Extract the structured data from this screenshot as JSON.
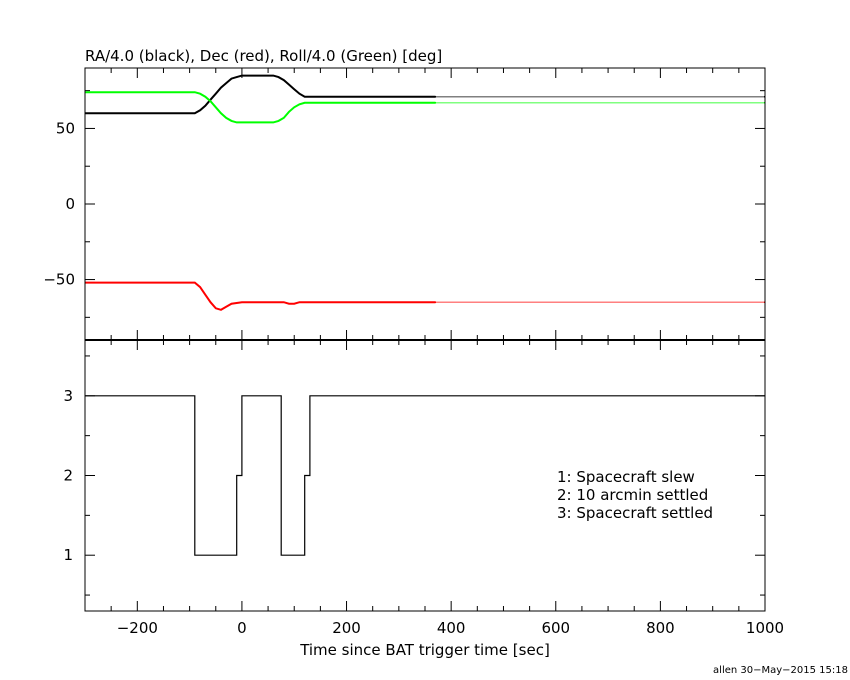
{
  "chart_data": [
    {
      "type": "line",
      "title": "RA/4.0 (black), Dec (red), Roll/4.0 (Green) [deg]",
      "xlim": [
        -300,
        1000
      ],
      "ylim": [
        -90,
        90
      ],
      "yticks": [
        -50,
        0,
        50
      ],
      "yticklabels": [
        "−50",
        "0",
        "50"
      ],
      "series": [
        {
          "color": "#000000",
          "solid_until": 370,
          "x": [
            -300,
            -90,
            -80,
            -70,
            -60,
            -50,
            -40,
            -30,
            -20,
            -10,
            0,
            60,
            70,
            80,
            90,
            100,
            110,
            120,
            370,
            1000
          ],
          "y": [
            60,
            60,
            62,
            65,
            69,
            73,
            77,
            80,
            83,
            84,
            85,
            85,
            84,
            82,
            79,
            76,
            73,
            71,
            71,
            71
          ]
        },
        {
          "color": "#ff0000",
          "solid_until": 370,
          "x": [
            -300,
            -90,
            -80,
            -70,
            -60,
            -50,
            -40,
            -30,
            -20,
            0,
            60,
            80,
            90,
            100,
            110,
            370,
            1000
          ],
          "y": [
            -52,
            -52,
            -55,
            -60,
            -65,
            -69,
            -70,
            -68,
            -66,
            -65,
            -65,
            -65,
            -66,
            -66,
            -65,
            -65,
            -65
          ]
        },
        {
          "color": "#00ff00",
          "solid_until": 370,
          "x": [
            -300,
            -90,
            -80,
            -70,
            -60,
            -50,
            -40,
            -30,
            -20,
            -10,
            0,
            60,
            70,
            80,
            90,
            100,
            110,
            120,
            370,
            1000
          ],
          "y": [
            74,
            74,
            73,
            71,
            68,
            64,
            60,
            57,
            55,
            54,
            54,
            54,
            55,
            57,
            61,
            64,
            66,
            67,
            67,
            67
          ]
        }
      ]
    },
    {
      "type": "line",
      "title": "",
      "xlabel": "Time since BAT trigger time [sec]",
      "xlim": [
        -300,
        1000
      ],
      "ylim": [
        0.3,
        3.7
      ],
      "xticks": [
        -200,
        0,
        200,
        400,
        600,
        800,
        1000
      ],
      "xticklabels": [
        "−200",
        "0",
        "200",
        "400",
        "600",
        "800",
        "1000"
      ],
      "yticks": [
        1,
        2,
        3
      ],
      "yticklabels": [
        "1",
        "2",
        "3"
      ],
      "series": [
        {
          "color": "#000000",
          "step": true,
          "x": [
            -300,
            -90,
            -10,
            0,
            75,
            120,
            130,
            1000
          ],
          "y": [
            3,
            1,
            2,
            3,
            1,
            2,
            3,
            3
          ]
        }
      ],
      "annotations": [
        "1: Spacecraft slew",
        "2: 10 arcmin settled",
        "3: Spacecraft settled"
      ]
    }
  ],
  "footer": "allen 30−May−2015 15:18"
}
